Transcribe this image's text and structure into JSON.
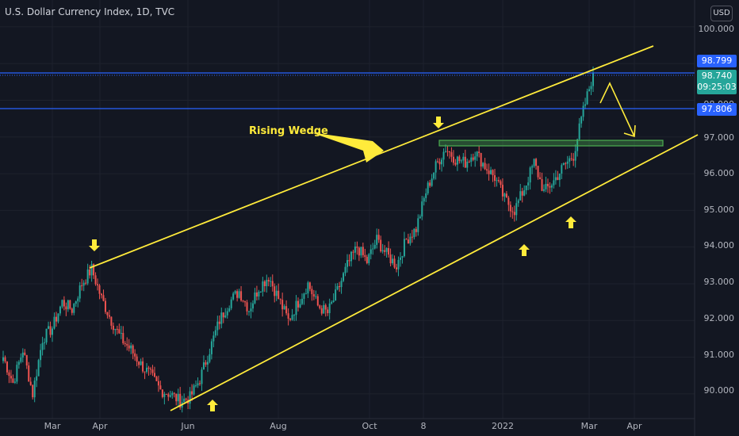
{
  "header": {
    "title": "U.S. Dollar Currency Index, 1D, TVC",
    "currency": "USD"
  },
  "chart_data": {
    "type": "candlestick",
    "ylim": [
      89.5,
      100.3
    ],
    "yticks": [
      "100.000",
      "99.000",
      "98.000",
      "97.000",
      "96.000",
      "95.000",
      "94.000",
      "93.000",
      "92.000",
      "91.000",
      "90.000"
    ],
    "xticks": [
      "Mar",
      "Apr",
      "Jun",
      "Aug",
      "Oct",
      "8",
      "2022",
      "Mar",
      "Apr"
    ],
    "levels": {
      "upper_line": "98.799",
      "current_price": "98.740",
      "countdown": "09:25:03",
      "lower_line": "97.806"
    },
    "closes": [
      91.0,
      90.3,
      91.2,
      90.0,
      91.5,
      91.8,
      92.5,
      92.3,
      93.0,
      93.4,
      92.6,
      92.0,
      91.5,
      91.2,
      90.8,
      90.5,
      90.1,
      90.0,
      89.8,
      89.9,
      90.4,
      91.2,
      92.0,
      92.5,
      92.8,
      92.3,
      92.9,
      93.2,
      92.6,
      92.0,
      92.5,
      93.0,
      92.4,
      92.2,
      92.8,
      93.5,
      94.0,
      93.6,
      94.2,
      93.8,
      93.5,
      94.2,
      94.5,
      95.5,
      96.2,
      96.7,
      96.4,
      96.3,
      96.6,
      96.2,
      95.9,
      95.3,
      95.0,
      95.6,
      96.3,
      95.5,
      95.8,
      96.2,
      96.5,
      97.7,
      98.74
    ],
    "colors": {
      "up": "#26a69a",
      "down": "#ef5350",
      "trendline": "#ffeb3b",
      "level": "#2962ff",
      "zone": "#4caf50"
    }
  },
  "annotations": {
    "pattern_label": "Rising Wedge"
  }
}
